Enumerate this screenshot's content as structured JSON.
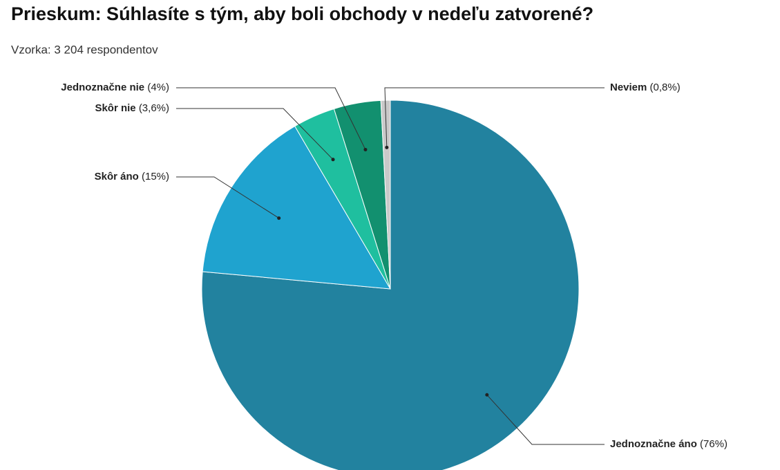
{
  "chart_data": {
    "type": "pie",
    "title": "Prieskum: Súhlasíte s tým, aby boli obchody v nedeľu zatvorené?",
    "subtitle": "Vzorka: 3 204 respondentov",
    "categories": [
      "Jednoznačne áno",
      "Skôr áno",
      "Skôr nie",
      "Jednoznačne nie",
      "Neviem"
    ],
    "values": [
      76,
      15,
      3.6,
      4,
      0.8
    ],
    "value_labels": [
      "(76%)",
      "(15%)",
      "(3,6%)",
      "(4%)",
      "(0,8%)"
    ],
    "colors": [
      "#22829f",
      "#1fa3cf",
      "#1fbf9f",
      "#12906f",
      "#c9c9c9"
    ]
  }
}
